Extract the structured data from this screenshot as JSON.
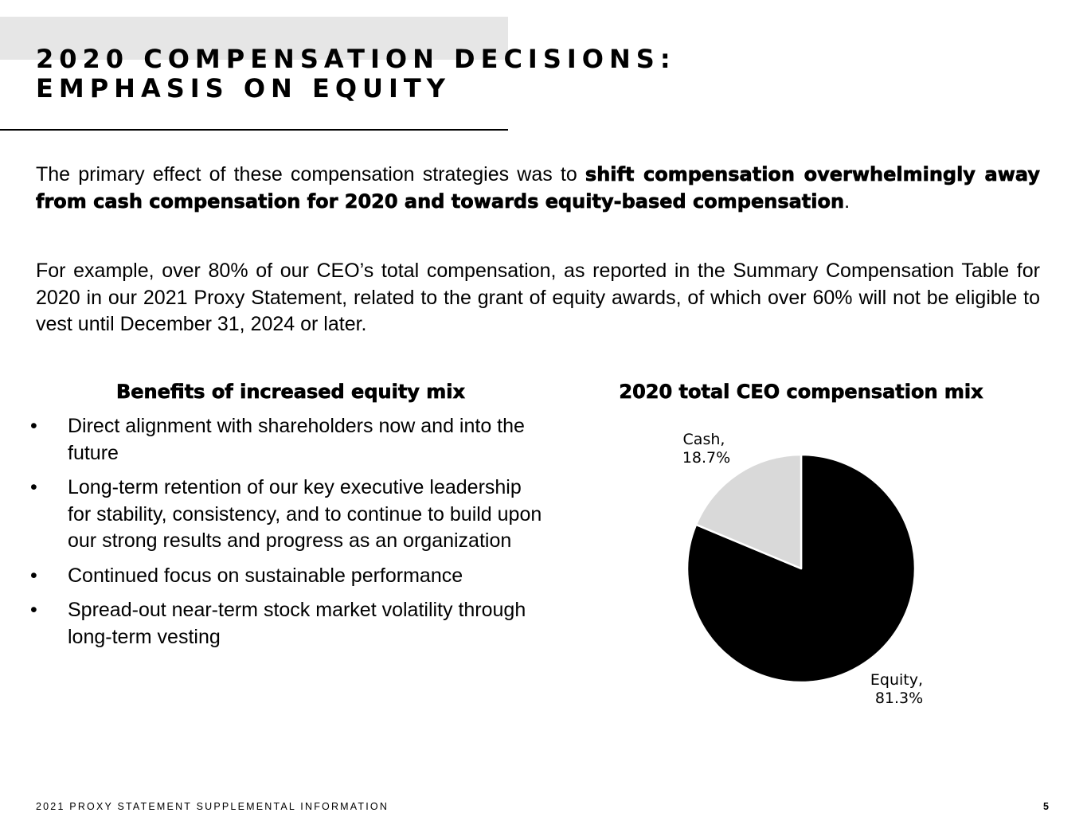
{
  "header": {
    "title_line1": "2020 COMPENSATION DECISIONS:",
    "title_line2": "EMPHASIS ON EQUITY"
  },
  "intro": {
    "p1_lead": "The primary effect of these compensation strategies was to ",
    "p1_emphasis": "shift compensation overwhelmingly away from cash compensation for 2020 and towards equity-based compensation",
    "p1_end": ".",
    "p2": "For example, over 80% of our CEO’s total compensation, as reported in the Summary Compensation Table for 2020 in our 2021 Proxy Statement, related to the grant of equity awards, of which over 60% will not be eligible to vest until December 31, 2024 or later."
  },
  "benefits": {
    "heading": "Benefits of increased equity mix",
    "bullet_glyph": "•",
    "items": [
      "Direct alignment with shareholders now and into the future",
      "Long-term retention of our key executive leadership for stability, consistency, and to continue to build upon our strong results and progress as an organization",
      "Continued focus on sustainable performance",
      "Spread-out near-term stock market volatility through long-term vesting"
    ]
  },
  "chart_data": {
    "type": "pie",
    "title": "2020 total CEO compensation mix",
    "slices": [
      {
        "name": "Equity",
        "value": 81.3,
        "label_line1": "Equity,",
        "label_line2": "81.3%",
        "color": "#000000"
      },
      {
        "name": "Cash",
        "value": 18.7,
        "label_line1": "Cash,",
        "label_line2": "18.7%",
        "color": "#d9d9d9"
      }
    ],
    "start": "12 o'clock",
    "direction": "clockwise"
  },
  "footer": {
    "text": "2021 PROXY STATEMENT SUPPLEMENTAL INFORMATION",
    "page_number": "5"
  }
}
